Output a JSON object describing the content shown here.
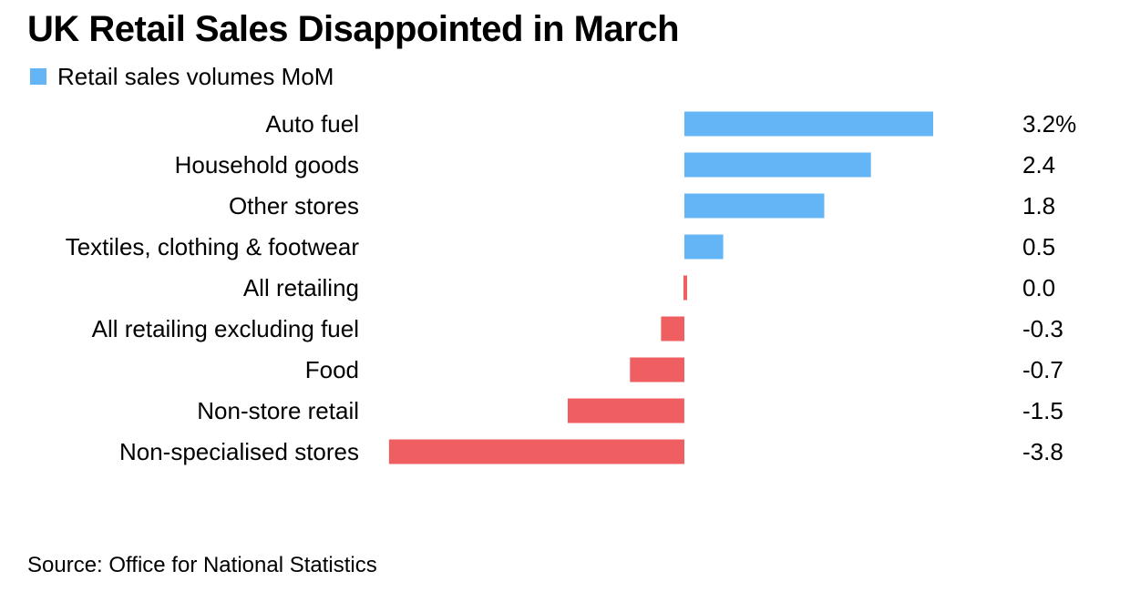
{
  "title": "UK Retail Sales Disappointed in March",
  "legend": {
    "label": "Retail sales volumes MoM"
  },
  "source": "Source: Office for National Statistics",
  "colors": {
    "positive": "#64b5f6",
    "negative": "#ef5f62",
    "text": "#000000"
  },
  "chart_data": {
    "type": "bar",
    "orientation": "horizontal",
    "title": "UK Retail Sales Disappointed in March",
    "xlabel": "",
    "ylabel": "",
    "grid": false,
    "legend_position": "top-left",
    "series": [
      {
        "name": "Retail sales volumes MoM"
      }
    ],
    "categories": [
      "Auto fuel",
      "Household goods",
      "Other stores",
      "Textiles, clothing & footwear",
      "All retailing",
      "All retailing excluding fuel",
      "Food",
      "Non-store retail",
      "Non-specialised stores"
    ],
    "values": [
      3.2,
      2.4,
      1.8,
      0.5,
      0.0,
      -0.3,
      -0.7,
      -1.5,
      -3.8
    ],
    "value_labels": [
      "3.2%",
      "2.4",
      "1.8",
      "0.5",
      "0.0",
      "-0.3",
      "-0.7",
      "-1.5",
      "-3.8"
    ],
    "xlim": [
      -3.8,
      3.2
    ]
  }
}
